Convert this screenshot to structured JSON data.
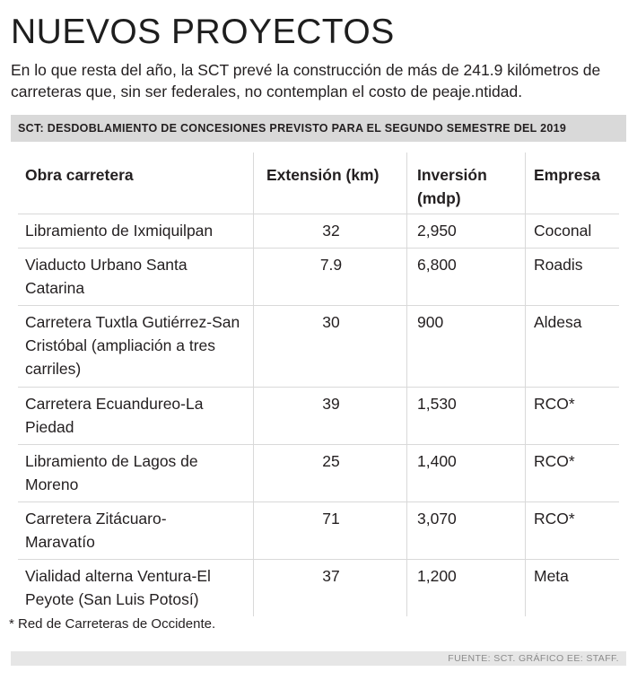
{
  "title": "NUEVOS PROYECTOS",
  "subtitle": "En lo que resta del año, la SCT prevé la construcción de más de 241.9 kilómetros de carreteras que, sin ser federales, no contemplan el costo de peaje.ntidad.",
  "band": "SCT: DESDOBLAMIENTO DE CONCESIONES PREVISTO PARA EL SEGUNDO SEMESTRE DEL 2019",
  "table": {
    "headers": [
      "Obra carretera",
      "Extensión (km)",
      "Inversión (mdp)",
      "Empresa"
    ],
    "rows": [
      {
        "obra": "Libramiento de Ixmiquilpan",
        "km": "32",
        "inversion": "2,950",
        "empresa": "Coconal"
      },
      {
        "obra": "Viaducto Urbano Santa Catarina",
        "km": "7.9",
        "inversion": "6,800",
        "empresa": "Roadis"
      },
      {
        "obra": "Carretera Tuxtla Gutiérrez-San Cristóbal (ampliación a tres carriles)",
        "km": "30",
        "inversion": "900",
        "empresa": "Aldesa"
      },
      {
        "obra": "Carretera Ecuandureo-La Piedad",
        "km": "39",
        "inversion": "1,530",
        "empresa": "RCO*"
      },
      {
        "obra": "Libramiento de Lagos de Moreno",
        "km": "25",
        "inversion": "1,400",
        "empresa": "RCO*"
      },
      {
        "obra": "Carretera Zitácuaro-Maravatío",
        "km": "71",
        "inversion": "3,070",
        "empresa": "RCO*"
      },
      {
        "obra": "Vialidad alterna Ventura-El Peyote (San Luis Potosí)",
        "km": "37",
        "inversion": "1,200",
        "empresa": "Meta"
      }
    ]
  },
  "footnote": "* Red de Carreteras de Occidente.",
  "source": "FUENTE: SCT. GRÁFICO EE: STAFF."
}
